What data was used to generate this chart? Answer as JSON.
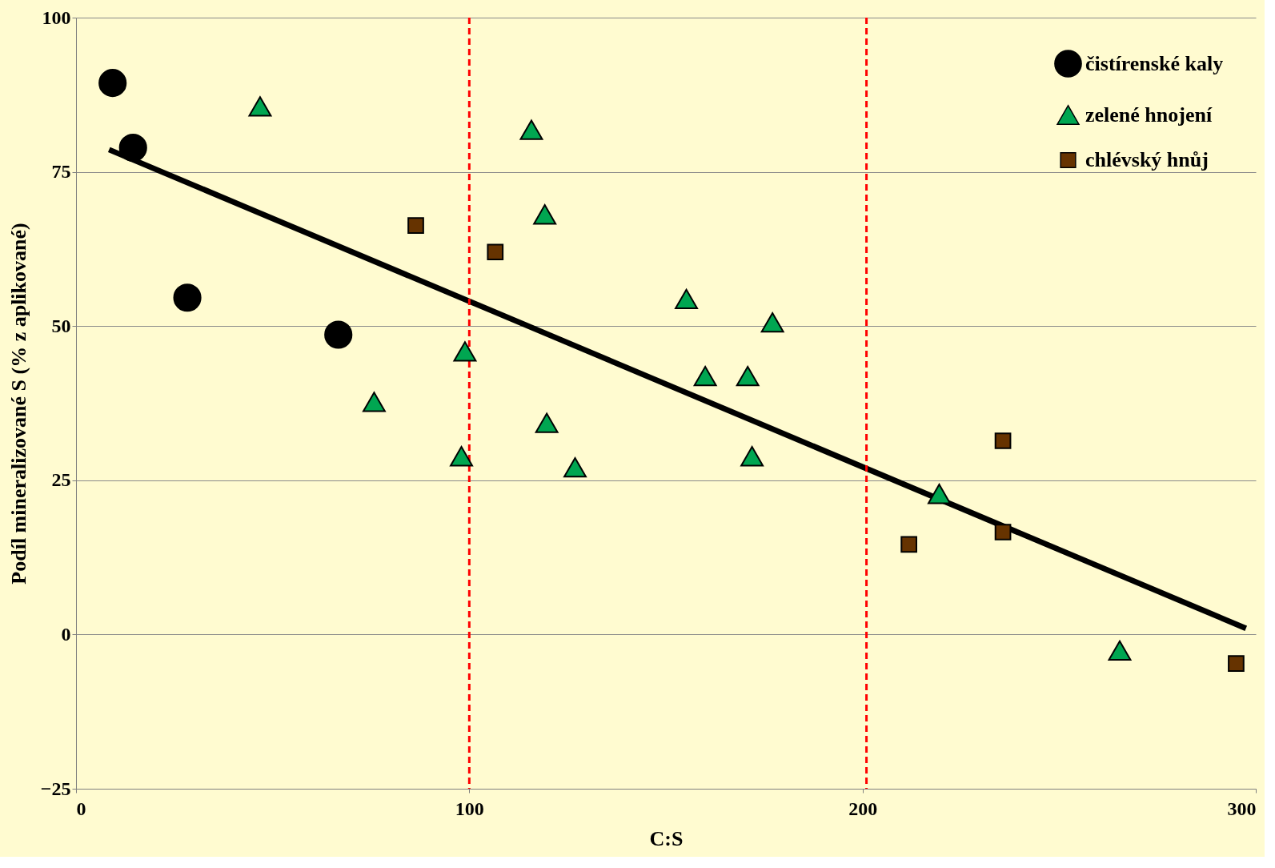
{
  "chart_data": {
    "type": "scatter",
    "xlabel": "C:S",
    "ylabel": "Podíl mineralizované  S (% z aplikované)",
    "xlim": [
      0,
      300
    ],
    "xticks": [
      0,
      100,
      200,
      300
    ],
    "ylim": [
      -25,
      100
    ],
    "yticks": [
      -25,
      0,
      25,
      50,
      75,
      100
    ],
    "grid": "y",
    "legend": "top right",
    "series": [
      {
        "name": "čistírenské kaly",
        "color": "#000000",
        "marker": "circle",
        "x": [
          9.3,
          14.5,
          28.3,
          66.7
        ],
        "values": [
          89.4,
          78.9,
          54.6,
          48.6
        ]
      },
      {
        "name": "zelené hnojení",
        "color": "#00a651",
        "marker": "triangle",
        "x": [
          46.8,
          115.8,
          119.2,
          75.8,
          98.9,
          98.0,
          119.7,
          126.9,
          155.2,
          160.0,
          170.8,
          177.1,
          171.9,
          219.5,
          265.4
        ],
        "values": [
          85.6,
          81.8,
          68.1,
          37.7,
          45.9,
          28.9,
          34.3,
          27.1,
          54.4,
          41.9,
          41.9,
          50.6,
          28.9,
          22.8,
          -2.6
        ]
      },
      {
        "name": "chlévský hnůj",
        "color": "#663300",
        "marker": "square",
        "x": [
          86.4,
          106.6,
          235.7,
          235.7,
          211.8,
          295.0
        ],
        "values": [
          66.3,
          62.0,
          31.4,
          16.6,
          14.6,
          -4.7
        ]
      },
      {
        "type": "line",
        "color": "#000000",
        "x": [
          8.4,
          297.5
        ],
        "values": [
          78.6,
          1.0
        ]
      }
    ],
    "ref_lines": [
      {
        "axis": "x",
        "value": 100,
        "color": "#ff0000",
        "line_style": "dashed"
      },
      {
        "axis": "x",
        "value": 201,
        "color": "#ff0000",
        "line_style": "dashed"
      }
    ]
  }
}
